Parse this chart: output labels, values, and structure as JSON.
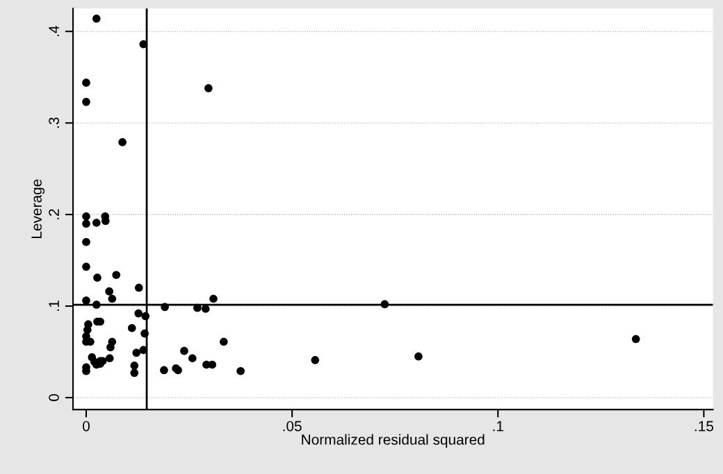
{
  "chart_data": {
    "type": "scatter",
    "xlabel": "Normalized residual squared",
    "ylabel": "Leverage",
    "x": [
      0.0025,
      0.0139,
      0,
      0,
      0.0297,
      0.0088,
      0,
      0,
      0.0046,
      0.0047,
      0.0025,
      0,
      0,
      0.0027,
      0.0073,
      0.0056,
      0.0063,
      0.0128,
      0,
      0.0025,
      0.0191,
      0.027,
      0.029,
      0.0309,
      0.0725,
      0.0144,
      0.0127,
      0.0005,
      0.0003,
      0.0027,
      0.0034,
      0,
      0.001,
      0,
      0.0111,
      0.0142,
      0.0063,
      0.0059,
      0.0122,
      0.0139,
      0.0334,
      0.0238,
      0.0258,
      0.0218,
      0.0223,
      0.0292,
      0.0306,
      0.0189,
      0.0117,
      0.0117,
      0.0375,
      0,
      0,
      0.0014,
      0.0034,
      0.002,
      0.004,
      0.0057,
      0.0025,
      0.0034,
      0.0556,
      0.0807,
      0.1335
    ],
    "series": [
      {
        "color": "#000000",
        "values": [
          0.414,
          0.386,
          0.344,
          0.323,
          0.338,
          0.279,
          0.198,
          0.19,
          0.198,
          0.193,
          0.191,
          0.17,
          0.143,
          0.131,
          0.134,
          0.116,
          0.108,
          0.12,
          0.106,
          0.1015,
          0.099,
          0.098,
          0.097,
          0.108,
          0.102,
          0.089,
          0.092,
          0.08,
          0.074,
          0.083,
          0.083,
          0.067,
          0.061,
          0.061,
          0.076,
          0.07,
          0.061,
          0.055,
          0.049,
          0.052,
          0.061,
          0.051,
          0.043,
          0.032,
          0.03,
          0.036,
          0.036,
          0.03,
          0.035,
          0.027,
          0.029,
          0.033,
          0.029,
          0.044,
          0.04,
          0.039,
          0.04,
          0.043,
          0.036,
          0.037,
          0.041,
          0.045,
          0.064
        ]
      }
    ],
    "xlim": [
      -0.0032,
      0.1522
    ],
    "ylim": [
      -0.013,
      0.425
    ],
    "xticks": [
      0,
      {
        "value": 0.05,
        "label": ".05"
      },
      {
        "value": 0.1,
        "label": ".1"
      },
      {
        "value": 0.15,
        "label": ".15"
      }
    ],
    "yticks": [
      0,
      {
        "value": 0.1,
        "label": ".1"
      },
      {
        "value": 0.2,
        "label": ".2"
      },
      {
        "value": 0.3,
        "label": ".3"
      },
      {
        "value": 0.4,
        "label": ".4"
      }
    ],
    "ref_lines": [
      {
        "axis": "x",
        "value": 0.0147,
        "color": "#000000"
      },
      {
        "axis": "y",
        "value": 0.1015,
        "color": "#000000"
      }
    ],
    "grid": "y",
    "marker": "circle"
  }
}
